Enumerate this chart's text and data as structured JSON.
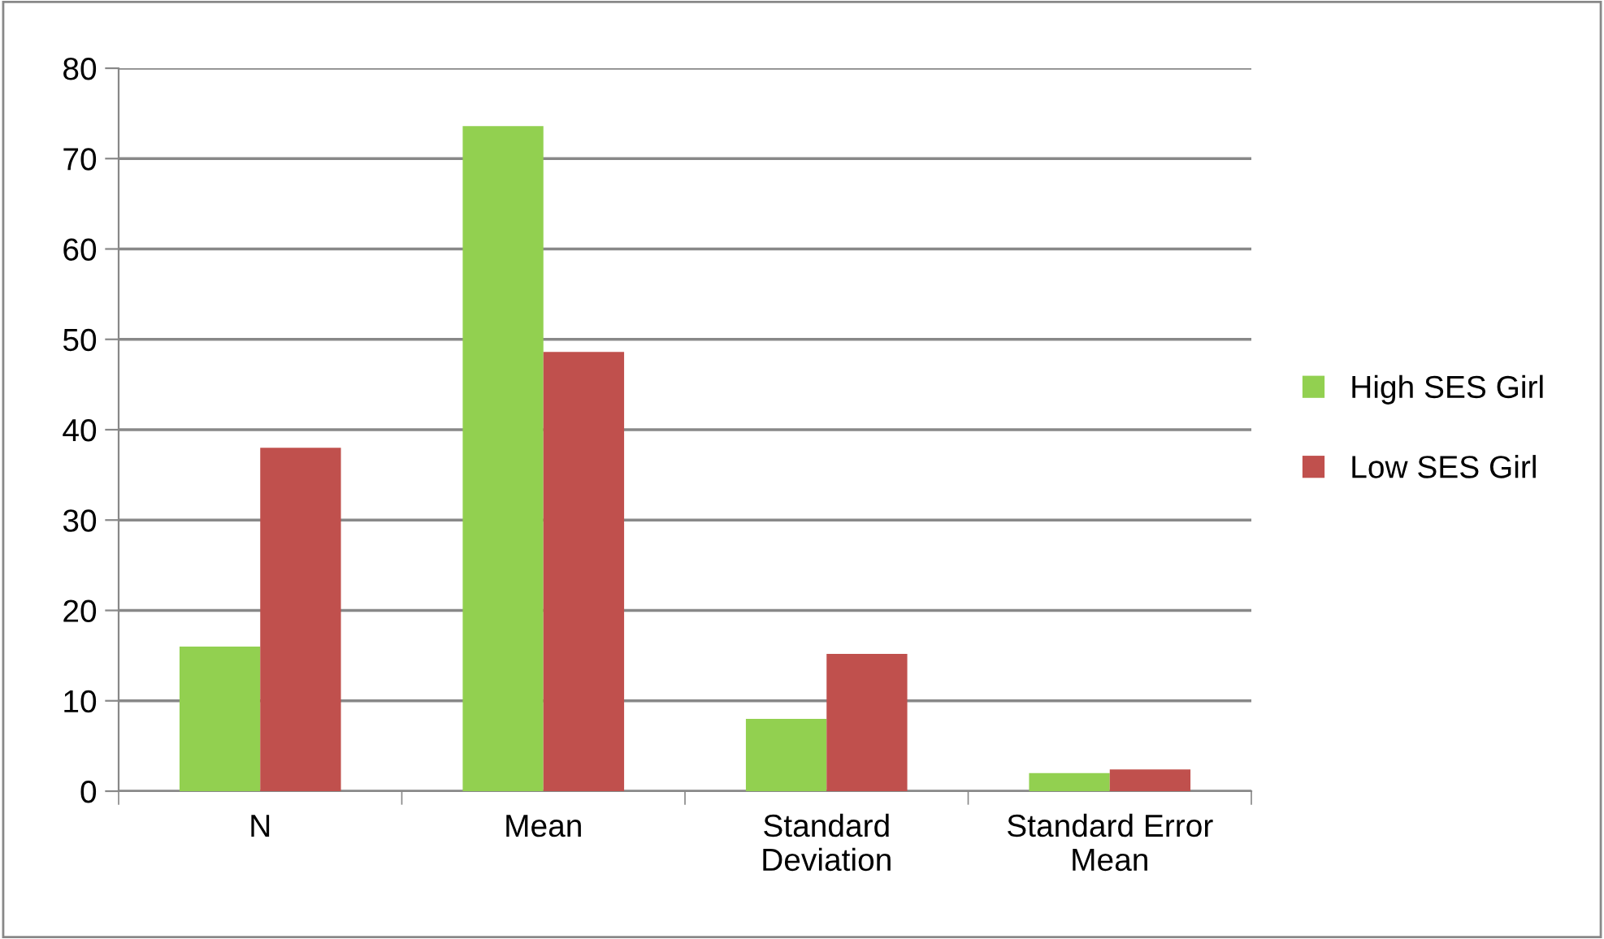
{
  "chart_data": {
    "type": "bar",
    "categories": [
      "N",
      "Mean",
      "Standard\nDeviation",
      "Standard Error\nMean"
    ],
    "series": [
      {
        "name": "High SES Girl",
        "color": "#92d050",
        "values": [
          16,
          73.6,
          8.0,
          2.0
        ]
      },
      {
        "name": "Low SES Girl",
        "color": "#c0504d",
        "values": [
          38,
          48.6,
          15.2,
          2.4
        ]
      }
    ],
    "ylim": [
      0,
      80
    ],
    "yticks": [
      0,
      10,
      20,
      30,
      40,
      50,
      60,
      70,
      80
    ],
    "grid": "y",
    "legend": "right"
  }
}
